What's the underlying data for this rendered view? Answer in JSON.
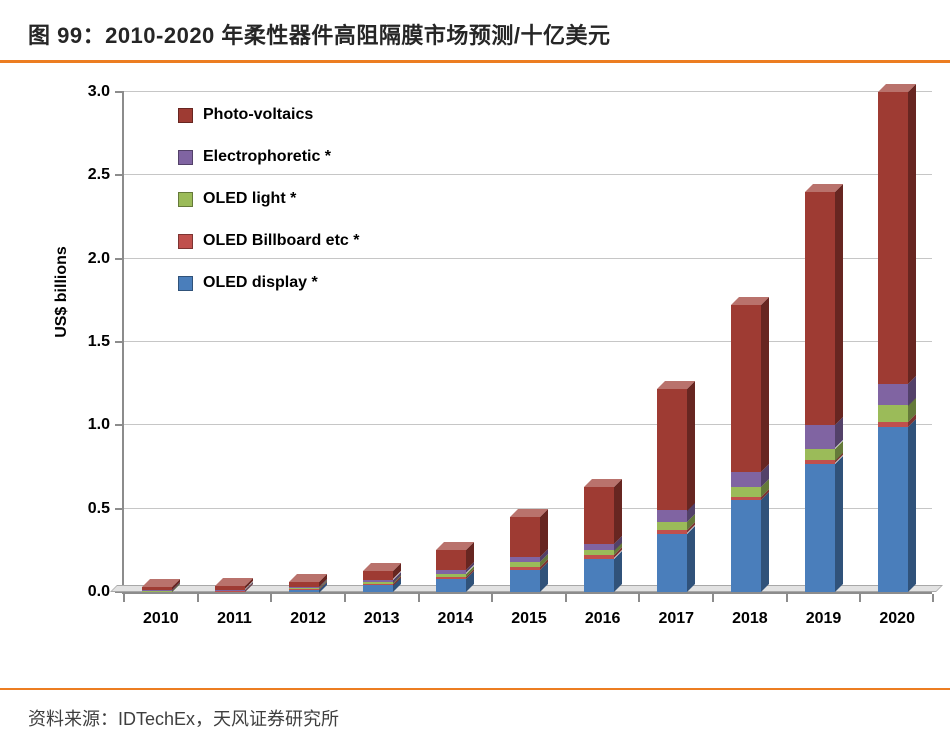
{
  "header": {
    "title": "图 99：2010-2020 年柔性器件高阻隔膜市场预测/十亿美元"
  },
  "footer": {
    "source": "资料来源：IDTechEx，天风证券研究所"
  },
  "colors": {
    "divider_orange": "#ec7d21"
  },
  "chart_data": {
    "type": "bar",
    "stacked": true,
    "title": "",
    "xlabel": "",
    "ylabel": "US$ billions",
    "ylim": [
      0,
      3.0
    ],
    "yticks": [
      0.0,
      0.5,
      1.0,
      1.5,
      2.0,
      2.5,
      3.0
    ],
    "grid": true,
    "legend_position": "top-left",
    "categories": [
      "2010",
      "2011",
      "2012",
      "2013",
      "2014",
      "2015",
      "2016",
      "2017",
      "2018",
      "2019",
      "2020"
    ],
    "series": [
      {
        "name": "Photo-voltaics",
        "color": "#9e3b33",
        "values": [
          0.02,
          0.02,
          0.03,
          0.05,
          0.12,
          0.24,
          0.34,
          0.73,
          1.0,
          1.4,
          1.75
        ]
      },
      {
        "name": "Electrophoretic *",
        "color": "#8064a2",
        "values": [
          0.003,
          0.004,
          0.006,
          0.015,
          0.02,
          0.03,
          0.04,
          0.07,
          0.09,
          0.14,
          0.13
        ]
      },
      {
        "name": "OLED light *",
        "color": "#9bbb59",
        "values": [
          0.002,
          0.003,
          0.004,
          0.01,
          0.02,
          0.03,
          0.03,
          0.05,
          0.06,
          0.07,
          0.1
        ]
      },
      {
        "name": "OLED Billboard etc *",
        "color": "#c0504d",
        "values": [
          0.002,
          0.003,
          0.005,
          0.01,
          0.01,
          0.02,
          0.02,
          0.02,
          0.02,
          0.02,
          0.03
        ]
      },
      {
        "name": "OLED display *",
        "color": "#4a7ebb",
        "values": [
          0.005,
          0.005,
          0.015,
          0.04,
          0.08,
          0.13,
          0.2,
          0.35,
          0.55,
          0.77,
          0.99
        ]
      }
    ],
    "stack_order_bottom_to_top": [
      "OLED display *",
      "OLED Billboard etc *",
      "OLED light *",
      "Electrophoretic *",
      "Photo-voltaics"
    ]
  }
}
